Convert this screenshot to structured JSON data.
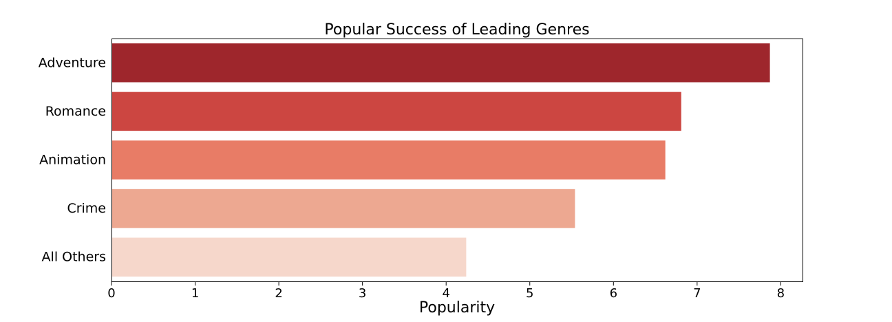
{
  "chart_data": {
    "type": "bar",
    "orientation": "horizontal",
    "title": "Popular Success of Leading Genres",
    "xlabel": "Popularity",
    "ylabel": "",
    "categories": [
      "Adventure",
      "Romance",
      "Animation",
      "Crime",
      "All Others"
    ],
    "values": [
      7.87,
      6.81,
      6.62,
      5.54,
      4.24
    ],
    "colors": [
      "#9e262c",
      "#cc4641",
      "#e87c66",
      "#eda891",
      "#f6d7cb"
    ],
    "xticks": [
      "0",
      "1",
      "2",
      "3",
      "4",
      "5",
      "6",
      "7",
      "8"
    ],
    "xlim": [
      0,
      8.26
    ],
    "grid": false,
    "legend": "none"
  }
}
